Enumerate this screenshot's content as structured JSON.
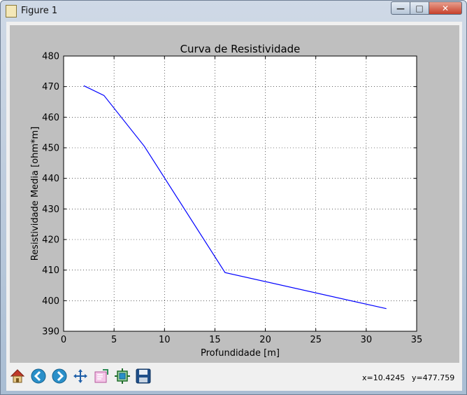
{
  "window": {
    "title": "Figure 1",
    "buttons": {
      "minimize": "—",
      "maximize": "□",
      "close": "✕"
    }
  },
  "toolbar": {
    "buttons": [
      {
        "name": "home",
        "icon": "home-icon"
      },
      {
        "name": "back",
        "icon": "arrow-left-icon"
      },
      {
        "name": "forward",
        "icon": "arrow-right-icon"
      },
      {
        "name": "pan",
        "icon": "move-icon"
      },
      {
        "name": "zoom",
        "icon": "zoom-rect-icon"
      },
      {
        "name": "subplots",
        "icon": "subplots-icon"
      },
      {
        "name": "save",
        "icon": "save-icon"
      }
    ],
    "x_readout": "x=10.4245",
    "y_readout": "y=477.759"
  },
  "colors": {
    "line": "#0000ff",
    "figure_bg": "#bfbfbf",
    "axes_bg": "#ffffff"
  },
  "chart_data": {
    "type": "line",
    "title": "Curva de Resistividade",
    "xlabel": "Profundidade [m]",
    "ylabel": "Resistividade Media [ohm*m]",
    "xlim": [
      0,
      35
    ],
    "ylim": [
      390,
      480
    ],
    "xticks": [
      0,
      5,
      10,
      15,
      20,
      25,
      30,
      35
    ],
    "yticks": [
      390,
      400,
      410,
      420,
      430,
      440,
      450,
      460,
      470,
      480
    ],
    "grid": true,
    "series": [
      {
        "x": [
          2,
          4,
          8,
          16,
          32
        ],
        "y": [
          470.3,
          467.1,
          450.5,
          409.2,
          397.4
        ]
      }
    ]
  }
}
